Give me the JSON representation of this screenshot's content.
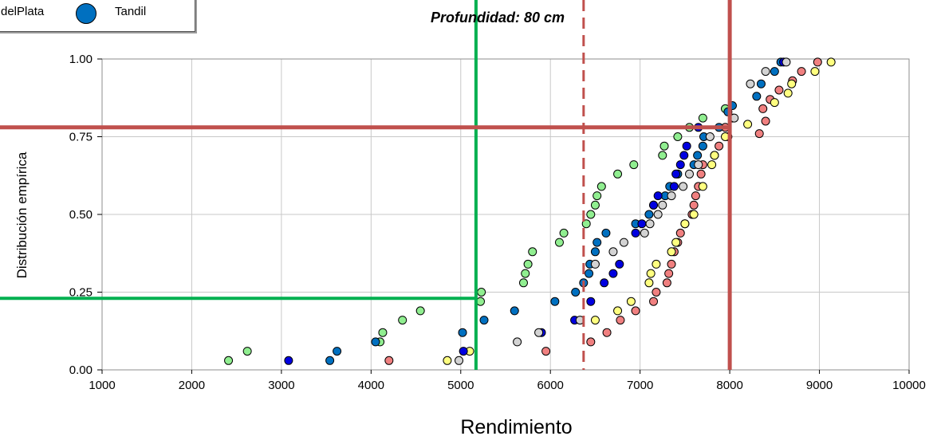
{
  "legend": {
    "entries": [
      {
        "label": "delPlata",
        "color": "#0070c0"
      },
      {
        "label": "Tandil",
        "color": "#0070c0"
      }
    ]
  },
  "chart_data": {
    "type": "scatter",
    "title": "Profundidad: 80 cm",
    "xlabel": "Rendimiento",
    "ylabel": "Distribución empírica",
    "xlim": [
      1000,
      10000
    ],
    "ylim": [
      0,
      1
    ],
    "x_ticks": [
      "1000",
      "2000",
      "3000",
      "4000",
      "5000",
      "6000",
      "7000",
      "8000",
      "9000",
      "10000"
    ],
    "y_ticks": [
      "0.00",
      "0.25",
      "0.50",
      "0.75",
      "1.00"
    ],
    "grid": true,
    "series": [
      {
        "color": "#90ee90",
        "points": [
          [
            2410,
            0.03
          ],
          [
            2620,
            0.06
          ],
          [
            4100,
            0.09
          ],
          [
            4130,
            0.12
          ],
          [
            4350,
            0.16
          ],
          [
            4550,
            0.19
          ],
          [
            5220,
            0.22
          ],
          [
            5230,
            0.25
          ],
          [
            5700,
            0.28
          ],
          [
            5720,
            0.31
          ],
          [
            5750,
            0.34
          ],
          [
            5800,
            0.38
          ],
          [
            6100,
            0.41
          ],
          [
            6150,
            0.44
          ],
          [
            6400,
            0.47
          ],
          [
            6450,
            0.5
          ],
          [
            6500,
            0.53
          ],
          [
            6520,
            0.56
          ],
          [
            6570,
            0.59
          ],
          [
            6750,
            0.63
          ],
          [
            6930,
            0.66
          ],
          [
            7250,
            0.69
          ],
          [
            7270,
            0.72
          ],
          [
            7420,
            0.75
          ],
          [
            7550,
            0.78
          ],
          [
            7700,
            0.81
          ],
          [
            7950,
            0.84
          ]
        ]
      },
      {
        "color": "#f08080",
        "points": [
          [
            4200,
            0.03
          ],
          [
            5950,
            0.06
          ],
          [
            6450,
            0.09
          ],
          [
            6630,
            0.12
          ],
          [
            6780,
            0.16
          ],
          [
            6950,
            0.19
          ],
          [
            7150,
            0.22
          ],
          [
            7180,
            0.25
          ],
          [
            7300,
            0.28
          ],
          [
            7320,
            0.31
          ],
          [
            7350,
            0.34
          ],
          [
            7380,
            0.38
          ],
          [
            7420,
            0.41
          ],
          [
            7450,
            0.44
          ],
          [
            7500,
            0.47
          ],
          [
            7580,
            0.5
          ],
          [
            7600,
            0.53
          ],
          [
            7620,
            0.56
          ],
          [
            7650,
            0.59
          ],
          [
            7680,
            0.63
          ],
          [
            7700,
            0.66
          ],
          [
            7830,
            0.69
          ],
          [
            7880,
            0.72
          ],
          [
            7980,
            0.75
          ],
          [
            7950,
            0.78
          ],
          [
            8030,
            0.81
          ],
          [
            8330,
            0.76
          ],
          [
            8400,
            0.8
          ],
          [
            8370,
            0.84
          ],
          [
            8450,
            0.87
          ],
          [
            8550,
            0.9
          ],
          [
            8700,
            0.93
          ],
          [
            8800,
            0.96
          ],
          [
            8980,
            0.99
          ]
        ]
      },
      {
        "color": "#ffff80",
        "points": [
          [
            4850,
            0.03
          ],
          [
            5100,
            0.06
          ],
          [
            6500,
            0.16
          ],
          [
            6750,
            0.19
          ],
          [
            6900,
            0.22
          ],
          [
            7100,
            0.28
          ],
          [
            7120,
            0.31
          ],
          [
            7180,
            0.34
          ],
          [
            7350,
            0.38
          ],
          [
            7400,
            0.41
          ],
          [
            7500,
            0.47
          ],
          [
            7600,
            0.5
          ],
          [
            7700,
            0.59
          ],
          [
            7800,
            0.66
          ],
          [
            7830,
            0.69
          ],
          [
            7950,
            0.75
          ],
          [
            8200,
            0.79
          ],
          [
            8500,
            0.86
          ],
          [
            8650,
            0.89
          ],
          [
            8690,
            0.92
          ],
          [
            8950,
            0.96
          ],
          [
            9130,
            0.99
          ]
        ]
      },
      {
        "color": "#0070c0",
        "points": [
          [
            3540,
            0.03
          ],
          [
            3620,
            0.06
          ],
          [
            4050,
            0.09
          ],
          [
            5020,
            0.12
          ],
          [
            5260,
            0.16
          ],
          [
            5600,
            0.19
          ],
          [
            6050,
            0.22
          ],
          [
            6280,
            0.25
          ],
          [
            6370,
            0.28
          ],
          [
            6430,
            0.31
          ],
          [
            6440,
            0.34
          ],
          [
            6500,
            0.38
          ],
          [
            6520,
            0.41
          ],
          [
            6620,
            0.44
          ],
          [
            6950,
            0.47
          ],
          [
            7100,
            0.5
          ],
          [
            7150,
            0.53
          ],
          [
            7280,
            0.56
          ],
          [
            7330,
            0.59
          ],
          [
            7420,
            0.63
          ],
          [
            7600,
            0.66
          ],
          [
            7640,
            0.69
          ],
          [
            7700,
            0.72
          ],
          [
            7710,
            0.75
          ],
          [
            7880,
            0.78
          ],
          [
            7980,
            0.83
          ],
          [
            8030,
            0.85
          ],
          [
            8300,
            0.88
          ],
          [
            8350,
            0.92
          ],
          [
            8500,
            0.96
          ],
          [
            8570,
            0.99
          ]
        ]
      },
      {
        "color": "#0000e0",
        "points": [
          [
            3080,
            0.03
          ],
          [
            5030,
            0.06
          ],
          [
            5900,
            0.12
          ],
          [
            6270,
            0.16
          ],
          [
            6450,
            0.22
          ],
          [
            6600,
            0.28
          ],
          [
            6700,
            0.31
          ],
          [
            6770,
            0.34
          ],
          [
            6950,
            0.44
          ],
          [
            7020,
            0.47
          ],
          [
            7150,
            0.53
          ],
          [
            7200,
            0.56
          ],
          [
            7380,
            0.59
          ],
          [
            7400,
            0.63
          ],
          [
            7450,
            0.66
          ],
          [
            7490,
            0.69
          ],
          [
            7520,
            0.72
          ],
          [
            7650,
            0.78
          ],
          [
            8600,
            0.99
          ]
        ]
      },
      {
        "color": "#d3d3d3",
        "points": [
          [
            4980,
            0.03
          ],
          [
            5630,
            0.09
          ],
          [
            5870,
            0.12
          ],
          [
            6330,
            0.16
          ],
          [
            6500,
            0.34
          ],
          [
            6700,
            0.38
          ],
          [
            6820,
            0.41
          ],
          [
            7050,
            0.44
          ],
          [
            7110,
            0.47
          ],
          [
            7200,
            0.5
          ],
          [
            7250,
            0.53
          ],
          [
            7350,
            0.56
          ],
          [
            7480,
            0.59
          ],
          [
            7550,
            0.63
          ],
          [
            7650,
            0.66
          ],
          [
            7780,
            0.75
          ],
          [
            8050,
            0.81
          ],
          [
            8230,
            0.92
          ],
          [
            8400,
            0.96
          ],
          [
            8630,
            0.99
          ]
        ]
      }
    ],
    "reference_lines": [
      {
        "orientation": "vertical",
        "x": 5170,
        "color": "#00b050",
        "style": "solid"
      },
      {
        "orientation": "horizontal",
        "y": 0.23,
        "x_end": 5170,
        "color": "#00b050",
        "style": "solid"
      },
      {
        "orientation": "vertical",
        "x": 6370,
        "color": "#c0504d",
        "style": "dashed"
      },
      {
        "orientation": "vertical",
        "x": 8000,
        "color": "#c0504d",
        "style": "solid"
      },
      {
        "orientation": "horizontal",
        "y": 0.78,
        "x_end": 8000,
        "color": "#c0504d",
        "style": "solid"
      }
    ]
  }
}
